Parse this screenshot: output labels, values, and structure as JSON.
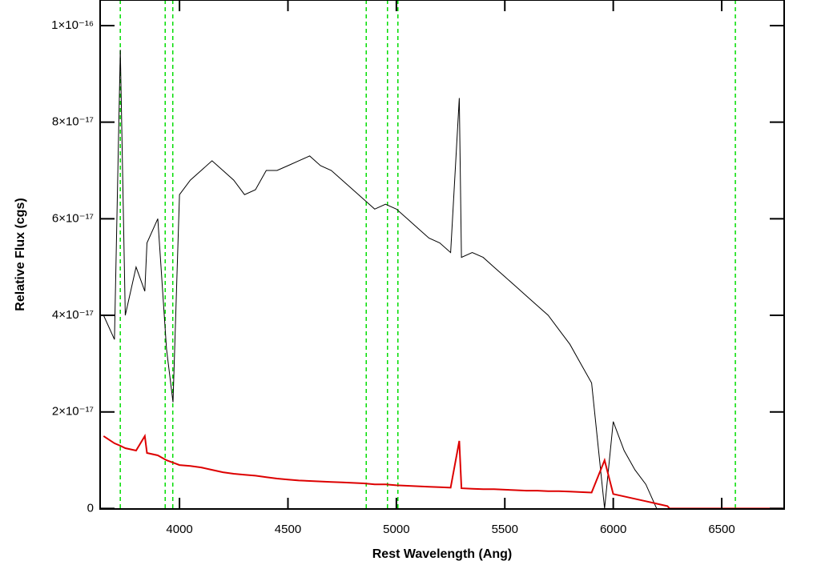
{
  "chart_data": {
    "type": "line",
    "x_label": "Rest Wavelength (Ang)",
    "y_label": "Relative Flux (cgs)",
    "x": [
      3650,
      3700,
      3727,
      3750,
      3800,
      3840,
      3850,
      3900,
      3940,
      3970,
      4000,
      4050,
      4100,
      4150,
      4200,
      4250,
      4300,
      4350,
      4400,
      4450,
      4500,
      4550,
      4600,
      4650,
      4700,
      4750,
      4800,
      4850,
      4900,
      4950,
      5000,
      5050,
      5100,
      5150,
      5200,
      5250,
      5290,
      5300,
      5350,
      5400,
      5450,
      5500,
      5550,
      5600,
      5650,
      5700,
      5750,
      5800,
      5850,
      5900,
      5960,
      6000,
      6050,
      6100,
      6150,
      6200,
      6250,
      6260,
      6300,
      6500,
      6780
    ],
    "series": [
      {
        "color": "#000000",
        "values": [
          4e-17,
          3.5e-17,
          9.5e-17,
          4e-17,
          5e-17,
          4.5e-17,
          5.5e-17,
          6e-17,
          3.3e-17,
          2.2e-17,
          6.5e-17,
          6.8e-17,
          7e-17,
          7.2e-17,
          7e-17,
          6.8e-17,
          6.5e-17,
          6.6e-17,
          7e-17,
          7e-17,
          7.1e-17,
          7.2e-17,
          7.3e-17,
          7.1e-17,
          7e-17,
          6.8e-17,
          6.6e-17,
          6.4e-17,
          6.2e-17,
          6.3e-17,
          6.2e-17,
          6e-17,
          5.8e-17,
          5.6e-17,
          5.5e-17,
          5.3e-17,
          8.5e-17,
          5.2e-17,
          5.3e-17,
          5.2e-17,
          5e-17,
          4.8e-17,
          4.6e-17,
          4.4e-17,
          4.2e-17,
          4e-17,
          3.7e-17,
          3.4e-17,
          3e-17,
          2.6e-17,
          0,
          1.8e-17,
          1.2e-17,
          8e-18,
          5e-18,
          0,
          null,
          null,
          null,
          null,
          null
        ]
      },
      {
        "color": "#dd0000",
        "values": [
          1.5e-17,
          1.35e-17,
          1.3e-17,
          1.25e-17,
          1.2e-17,
          1.5e-17,
          1.15e-17,
          1.1e-17,
          1e-17,
          9.5e-18,
          9e-18,
          8.8e-18,
          8.5e-18,
          8e-18,
          7.5e-18,
          7.2e-18,
          7e-18,
          6.8e-18,
          6.5e-18,
          6.2e-18,
          6e-18,
          5.8e-18,
          5.7e-18,
          5.6e-18,
          5.5e-18,
          5.4e-18,
          5.3e-18,
          5.2e-18,
          5e-18,
          5e-18,
          4.8e-18,
          4.7e-18,
          4.6e-18,
          4.5e-18,
          4.4e-18,
          4.3e-18,
          1.4e-17,
          4.2e-18,
          4.1e-18,
          4e-18,
          4e-18,
          3.9e-18,
          3.8e-18,
          3.7e-18,
          3.7e-18,
          3.6e-18,
          3.6e-18,
          3.5e-18,
          3.4e-18,
          3.3e-18,
          1e-17,
          3e-18,
          2.5e-18,
          2e-18,
          1.5e-18,
          1e-18,
          5e-19,
          0,
          0,
          0,
          0
        ]
      }
    ],
    "vlines": [
      3727,
      3934,
      3969,
      4861,
      4959,
      5007,
      6563
    ],
    "vline_color": "#00dd00",
    "xlim": [
      3634,
      6788
    ],
    "ylim": [
      -1e-19,
      1.053e-16
    ],
    "xticks": [
      4000,
      4500,
      5000,
      5500,
      6000,
      6500
    ],
    "yticks": [
      0,
      {
        "value": 2e-17,
        "label": "2×10⁻¹⁷"
      },
      {
        "value": 4e-17,
        "label": "4×10⁻¹⁷"
      },
      {
        "value": 6e-17,
        "label": "6×10⁻¹⁷"
      },
      {
        "value": 8e-17,
        "label": "8×10⁻¹⁷"
      },
      {
        "value": 1e-16,
        "label": "1×10⁻¹⁶"
      }
    ]
  }
}
